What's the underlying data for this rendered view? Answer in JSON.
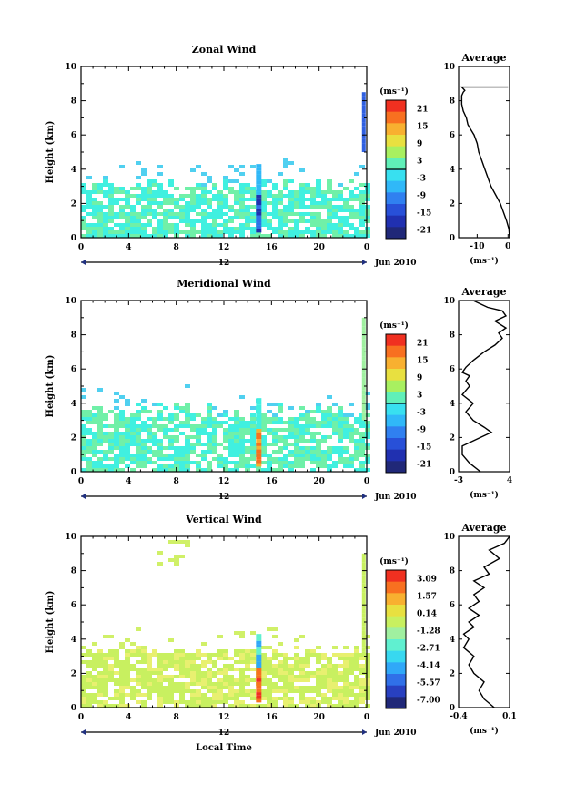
{
  "panels": [
    {
      "title": "Zonal Wind",
      "ylabel": "Height (km)",
      "ylim": [
        0,
        10
      ],
      "yticks": [
        "0",
        "2",
        "4",
        "6",
        "8",
        "10"
      ],
      "xticks": [
        "0",
        "4",
        "8",
        "12",
        "16",
        "20",
        "0"
      ],
      "xlim_hours": [
        0,
        24
      ],
      "date_marker": "12",
      "date_label": "Jun 2010",
      "colorbar": {
        "unit": "(ms⁻¹)",
        "ticks": [
          "21",
          "15",
          "9",
          "3",
          "-3",
          "-9",
          "-15",
          "-21"
        ],
        "colors": [
          "#f03020",
          "#f87020",
          "#f8b030",
          "#e8e040",
          "#a8f060",
          "#60f0b8",
          "#38e0f0",
          "#30b8f8",
          "#3080f0",
          "#2850d8",
          "#2030b0",
          "#202878"
        ],
        "contour_marker_value": "0"
      },
      "average": {
        "title": "Average",
        "xlabel": "(ms⁻¹)",
        "xticks": [
          "-10",
          "0"
        ],
        "xlim": [
          -16,
          0.5
        ],
        "ylim": [
          0,
          10
        ],
        "yticks": [
          "0",
          "2",
          "4",
          "6",
          "8",
          "10"
        ]
      }
    },
    {
      "title": "Meridional Wind",
      "ylabel": "Height (km)",
      "ylim": [
        0,
        10
      ],
      "yticks": [
        "0",
        "2",
        "4",
        "6",
        "8",
        "10"
      ],
      "xticks": [
        "0",
        "4",
        "8",
        "12",
        "16",
        "20",
        "0"
      ],
      "xlim_hours": [
        0,
        24
      ],
      "date_marker": "12",
      "date_label": "Jun 2010",
      "colorbar": {
        "unit": "(ms⁻¹)",
        "ticks": [
          "21",
          "15",
          "9",
          "3",
          "-3",
          "-9",
          "-15",
          "-21"
        ],
        "colors": [
          "#f03020",
          "#f87020",
          "#f8b030",
          "#e8e040",
          "#a8f060",
          "#60f0b8",
          "#38e0f0",
          "#30b8f8",
          "#3080f0",
          "#2850d8",
          "#2030b0",
          "#202878"
        ],
        "contour_marker_value": "0"
      },
      "average": {
        "title": "Average",
        "xlabel": "(ms⁻¹)",
        "xticks": [
          "-3",
          "4"
        ],
        "xlim": [
          -3,
          4
        ],
        "ylim": [
          0,
          10
        ],
        "yticks": [
          "0",
          "2",
          "4",
          "6",
          "8",
          "10"
        ]
      }
    },
    {
      "title": "Vertical Wind",
      "ylabel": "Height (km)",
      "xlabel": "Local Time",
      "ylim": [
        0,
        10
      ],
      "yticks": [
        "0",
        "2",
        "4",
        "6",
        "8",
        "10"
      ],
      "xticks": [
        "0",
        "4",
        "8",
        "12",
        "16",
        "20",
        "0"
      ],
      "xlim_hours": [
        0,
        24
      ],
      "date_marker": "12",
      "date_label": "Jun 2010",
      "colorbar": {
        "unit": "(ms⁻¹)",
        "ticks": [
          "3.09",
          "1.57",
          "0.14",
          "-1.28",
          "-2.71",
          "-4.14",
          "-5.57",
          "-7.00"
        ],
        "colors": [
          "#f03020",
          "#f87020",
          "#f8b030",
          "#e8e040",
          "#c8f060",
          "#a0f0a0",
          "#60f0d0",
          "#38d8f0",
          "#30a8f8",
          "#3070e8",
          "#2840c0",
          "#202878"
        ]
      },
      "average": {
        "title": "Average",
        "xlabel": "(ms⁻¹)",
        "xticks": [
          "-0.4",
          "0.1"
        ],
        "xlim": [
          -0.4,
          0.1
        ],
        "ylim": [
          0,
          10
        ],
        "yticks": [
          "0",
          "2",
          "4",
          "6",
          "8",
          "10"
        ]
      }
    }
  ],
  "chart_data": [
    {
      "type": "heatmap",
      "title": "Zonal Wind",
      "ylabel": "Height (km)",
      "xlim": [
        0,
        24
      ],
      "ylim": [
        0,
        10
      ],
      "unit": "ms-1",
      "data_extent_km": "mostly 0–3 km, sparse to ~5 km; strong negative values near 14–15 h and 23–24 h"
    },
    {
      "type": "line",
      "title": "Average",
      "series": [
        {
          "x": [
            0.5,
            0.3,
            -0.5,
            -1.5,
            -2.5,
            -4,
            -5.5,
            -6.5,
            -7.5,
            -8.5,
            -9.5,
            -10,
            -11,
            -12,
            -13,
            -13.5,
            -14.5,
            -15,
            -15,
            -15,
            -14.5,
            -14,
            -15,
            0
          ],
          "y": [
            0,
            0.5,
            1,
            1.5,
            2,
            2.5,
            3,
            3.5,
            4,
            4.5,
            5,
            5.5,
            6,
            6.3,
            6.6,
            7,
            7.4,
            7.8,
            8.0,
            8.3,
            8.5,
            8.6,
            8.8,
            8.8
          ]
        }
      ],
      "xlim": [
        -16,
        0.5
      ],
      "ylim": [
        0,
        10
      ]
    },
    {
      "type": "heatmap",
      "title": "Meridional Wind",
      "ylabel": "Height (km)",
      "xlim": [
        0,
        24
      ],
      "ylim": [
        0,
        10
      ],
      "unit": "ms-1",
      "data_extent_km": "mostly 0–4 km; strong positive values near 14–15 h; sparse signal to ~9 km near 23–24 h"
    },
    {
      "type": "line",
      "title": "Average",
      "series": [
        {
          "x": [
            0,
            -1.5,
            -2.5,
            -2.5,
            0,
            1.5,
            0.5,
            -1,
            -2,
            -1,
            -2.5,
            -1.5,
            -2,
            -1.5,
            -2.5,
            -2,
            -1,
            0.5,
            2,
            3,
            2.5,
            3.5,
            2,
            3.5,
            3,
            1,
            0,
            -1
          ],
          "y": [
            0,
            0.5,
            1,
            1.5,
            2,
            2.3,
            2.6,
            3,
            3.5,
            4,
            4.5,
            5,
            5.3,
            5.6,
            5.8,
            6.1,
            6.5,
            7,
            7.4,
            7.8,
            8.1,
            8.4,
            8.8,
            9.1,
            9.4,
            9.6,
            9.8,
            10
          ]
        }
      ],
      "xlim": [
        -3,
        4
      ],
      "ylim": [
        0,
        10
      ]
    },
    {
      "type": "heatmap",
      "title": "Vertical Wind",
      "ylabel": "Height (km)",
      "xlabel": "Local Time",
      "xlim": [
        0,
        24
      ],
      "ylim": [
        0,
        10
      ],
      "unit": "ms-1",
      "data_extent_km": "mostly 0–4 km, sparse to 10 km; strong values near 14–15 h"
    },
    {
      "type": "line",
      "title": "Average",
      "series": [
        {
          "x": [
            -0.05,
            -0.15,
            -0.2,
            -0.15,
            -0.25,
            -0.3,
            -0.25,
            -0.35,
            -0.3,
            -0.35,
            -0.25,
            -0.3,
            -0.2,
            -0.3,
            -0.2,
            -0.25,
            -0.15,
            -0.25,
            -0.1,
            -0.15,
            0,
            -0.1,
            0.05,
            0.1
          ],
          "y": [
            0,
            0.5,
            1,
            1.5,
            2,
            2.5,
            3,
            3.5,
            4,
            4.3,
            4.7,
            5,
            5.4,
            5.8,
            6.2,
            6.6,
            7,
            7.4,
            7.8,
            8.2,
            8.7,
            9.2,
            9.6,
            10
          ]
        }
      ],
      "xlim": [
        -0.4,
        0.1
      ],
      "ylim": [
        0,
        10
      ]
    }
  ]
}
